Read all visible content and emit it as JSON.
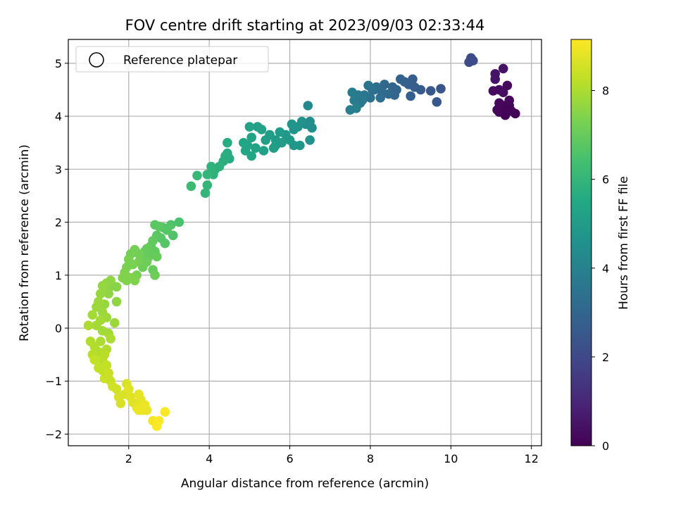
{
  "chart_data": {
    "type": "scatter",
    "title": "FOV centre drift starting at 2023/09/03 02:33:44",
    "xlabel": "Angular distance from reference (arcmin)",
    "ylabel": "Rotation from reference (arcmin)",
    "xlim": [
      0.5,
      12.25
    ],
    "ylim": [
      -2.22,
      5.45
    ],
    "xticks": [
      2,
      4,
      6,
      8,
      10,
      12
    ],
    "yticks": [
      -2,
      -1,
      0,
      1,
      2,
      3,
      4,
      5
    ],
    "grid": true,
    "legend": {
      "placement": "top-left",
      "entries": [
        "Reference platepar"
      ]
    },
    "colorbar": {
      "label": "Hours from first FF file",
      "range": [
        0,
        9.15
      ],
      "ticks": [
        0,
        2,
        4,
        6,
        8
      ],
      "colormap": "viridis"
    },
    "points": [
      {
        "x": 10.5,
        "y": 5.1,
        "t": 2.1
      },
      {
        "x": 10.55,
        "y": 5.05,
        "t": 2.1
      },
      {
        "x": 10.45,
        "y": 5.02,
        "t": 2.1
      },
      {
        "x": 11.1,
        "y": 4.8,
        "t": 0.5
      },
      {
        "x": 11.3,
        "y": 4.9,
        "t": 0.5
      },
      {
        "x": 11.1,
        "y": 4.7,
        "t": 0.5
      },
      {
        "x": 11.2,
        "y": 4.5,
        "t": 0.3
      },
      {
        "x": 11.3,
        "y": 4.45,
        "t": 0.3
      },
      {
        "x": 11.4,
        "y": 4.58,
        "t": 0.2
      },
      {
        "x": 11.05,
        "y": 4.48,
        "t": 0.3
      },
      {
        "x": 11.45,
        "y": 4.3,
        "t": 0.2
      },
      {
        "x": 11.2,
        "y": 4.25,
        "t": 0.2
      },
      {
        "x": 11.3,
        "y": 4.2,
        "t": 0.1
      },
      {
        "x": 11.4,
        "y": 4.15,
        "t": 0.1
      },
      {
        "x": 11.5,
        "y": 4.1,
        "t": 0.1
      },
      {
        "x": 11.2,
        "y": 4.08,
        "t": 0.1
      },
      {
        "x": 11.35,
        "y": 4.02,
        "t": 0.05
      },
      {
        "x": 11.6,
        "y": 4.05,
        "t": 0.05
      },
      {
        "x": 11.45,
        "y": 4.2,
        "t": 0.1
      },
      {
        "x": 11.15,
        "y": 4.12,
        "t": 0.15
      },
      {
        "x": 9.75,
        "y": 4.52,
        "t": 2.4
      },
      {
        "x": 9.65,
        "y": 4.27,
        "t": 2.5
      },
      {
        "x": 9.5,
        "y": 4.48,
        "t": 2.5
      },
      {
        "x": 9.25,
        "y": 4.5,
        "t": 2.6
      },
      {
        "x": 9.05,
        "y": 4.7,
        "t": 2.7
      },
      {
        "x": 8.95,
        "y": 4.6,
        "t": 2.75
      },
      {
        "x": 9.1,
        "y": 4.55,
        "t": 2.7
      },
      {
        "x": 8.85,
        "y": 4.65,
        "t": 2.8
      },
      {
        "x": 8.75,
        "y": 4.7,
        "t": 2.9
      },
      {
        "x": 9.0,
        "y": 4.38,
        "t": 2.75
      },
      {
        "x": 8.65,
        "y": 4.5,
        "t": 3.0
      },
      {
        "x": 8.55,
        "y": 4.55,
        "t": 3.0
      },
      {
        "x": 8.45,
        "y": 4.42,
        "t": 3.1
      },
      {
        "x": 8.35,
        "y": 4.6,
        "t": 3.1
      },
      {
        "x": 8.3,
        "y": 4.45,
        "t": 3.2
      },
      {
        "x": 8.25,
        "y": 4.35,
        "t": 3.3
      },
      {
        "x": 8.15,
        "y": 4.55,
        "t": 3.3
      },
      {
        "x": 8.05,
        "y": 4.5,
        "t": 3.4
      },
      {
        "x": 8.0,
        "y": 4.35,
        "t": 3.4
      },
      {
        "x": 7.95,
        "y": 4.58,
        "t": 3.5
      },
      {
        "x": 7.85,
        "y": 4.4,
        "t": 3.6
      },
      {
        "x": 7.75,
        "y": 4.25,
        "t": 3.6
      },
      {
        "x": 7.7,
        "y": 4.4,
        "t": 3.7
      },
      {
        "x": 7.6,
        "y": 4.3,
        "t": 3.8
      },
      {
        "x": 7.55,
        "y": 4.45,
        "t": 3.8
      },
      {
        "x": 7.5,
        "y": 4.12,
        "t": 3.9
      },
      {
        "x": 7.65,
        "y": 4.15,
        "t": 3.9
      },
      {
        "x": 7.8,
        "y": 4.3,
        "t": 3.7
      },
      {
        "x": 8.1,
        "y": 4.5,
        "t": 3.3
      },
      {
        "x": 8.6,
        "y": 4.4,
        "t": 3.0
      },
      {
        "x": 6.45,
        "y": 4.2,
        "t": 4.3
      },
      {
        "x": 6.55,
        "y": 3.78,
        "t": 4.5
      },
      {
        "x": 6.5,
        "y": 3.9,
        "t": 4.4
      },
      {
        "x": 6.4,
        "y": 3.85,
        "t": 4.5
      },
      {
        "x": 6.3,
        "y": 3.9,
        "t": 4.6
      },
      {
        "x": 6.2,
        "y": 3.8,
        "t": 4.6
      },
      {
        "x": 6.1,
        "y": 3.75,
        "t": 4.7
      },
      {
        "x": 6.05,
        "y": 3.85,
        "t": 4.7
      },
      {
        "x": 6.5,
        "y": 3.55,
        "t": 4.6
      },
      {
        "x": 6.25,
        "y": 3.45,
        "t": 4.8
      },
      {
        "x": 6.1,
        "y": 3.45,
        "t": 4.8
      },
      {
        "x": 6.0,
        "y": 3.55,
        "t": 4.9
      },
      {
        "x": 5.9,
        "y": 3.65,
        "t": 4.9
      },
      {
        "x": 5.75,
        "y": 3.7,
        "t": 5.0
      },
      {
        "x": 5.65,
        "y": 3.55,
        "t": 5.0
      },
      {
        "x": 5.6,
        "y": 3.4,
        "t": 5.1
      },
      {
        "x": 5.5,
        "y": 3.65,
        "t": 5.1
      },
      {
        "x": 5.4,
        "y": 3.55,
        "t": 5.1
      },
      {
        "x": 5.3,
        "y": 3.75,
        "t": 5.2
      },
      {
        "x": 5.2,
        "y": 3.8,
        "t": 5.2
      },
      {
        "x": 5.15,
        "y": 3.4,
        "t": 5.3
      },
      {
        "x": 5.05,
        "y": 3.6,
        "t": 5.3
      },
      {
        "x": 5.0,
        "y": 3.8,
        "t": 5.3
      },
      {
        "x": 4.95,
        "y": 3.45,
        "t": 5.4
      },
      {
        "x": 4.9,
        "y": 3.35,
        "t": 5.4
      },
      {
        "x": 4.85,
        "y": 3.5,
        "t": 5.4
      },
      {
        "x": 5.05,
        "y": 3.25,
        "t": 5.4
      },
      {
        "x": 5.35,
        "y": 3.35,
        "t": 5.2
      },
      {
        "x": 5.65,
        "y": 3.45,
        "t": 5.0
      },
      {
        "x": 5.8,
        "y": 3.5,
        "t": 5.0
      },
      {
        "x": 4.45,
        "y": 3.5,
        "t": 5.6
      },
      {
        "x": 4.5,
        "y": 3.2,
        "t": 5.6
      },
      {
        "x": 4.4,
        "y": 3.25,
        "t": 5.7
      },
      {
        "x": 4.35,
        "y": 3.15,
        "t": 5.7
      },
      {
        "x": 4.25,
        "y": 3.05,
        "t": 5.8
      },
      {
        "x": 4.15,
        "y": 3.0,
        "t": 5.8
      },
      {
        "x": 4.05,
        "y": 3.05,
        "t": 5.9
      },
      {
        "x": 4.1,
        "y": 2.9,
        "t": 5.9
      },
      {
        "x": 3.95,
        "y": 2.9,
        "t": 6.0
      },
      {
        "x": 3.95,
        "y": 2.7,
        "t": 6.0
      },
      {
        "x": 3.9,
        "y": 2.55,
        "t": 6.0
      },
      {
        "x": 3.7,
        "y": 2.88,
        "t": 6.1
      },
      {
        "x": 3.55,
        "y": 2.68,
        "t": 6.2
      },
      {
        "x": 4.45,
        "y": 3.3,
        "t": 5.6
      },
      {
        "x": 3.25,
        "y": 2.0,
        "t": 6.5
      },
      {
        "x": 3.1,
        "y": 1.75,
        "t": 6.6
      },
      {
        "x": 3.05,
        "y": 1.95,
        "t": 6.6
      },
      {
        "x": 2.95,
        "y": 1.85,
        "t": 6.7
      },
      {
        "x": 2.85,
        "y": 1.9,
        "t": 6.7
      },
      {
        "x": 2.8,
        "y": 1.7,
        "t": 6.7
      },
      {
        "x": 2.75,
        "y": 1.92,
        "t": 6.8
      },
      {
        "x": 2.65,
        "y": 1.95,
        "t": 6.8
      },
      {
        "x": 2.7,
        "y": 1.75,
        "t": 6.8
      },
      {
        "x": 2.9,
        "y": 1.6,
        "t": 6.7
      },
      {
        "x": 2.6,
        "y": 1.65,
        "t": 6.9
      },
      {
        "x": 2.55,
        "y": 1.55,
        "t": 6.9
      },
      {
        "x": 2.65,
        "y": 1.45,
        "t": 6.9
      },
      {
        "x": 2.7,
        "y": 1.35,
        "t": 7.0
      },
      {
        "x": 2.5,
        "y": 1.35,
        "t": 7.0
      },
      {
        "x": 2.4,
        "y": 1.45,
        "t": 7.0
      },
      {
        "x": 2.45,
        "y": 1.25,
        "t": 7.1
      },
      {
        "x": 2.35,
        "y": 1.15,
        "t": 7.1
      },
      {
        "x": 2.6,
        "y": 1.1,
        "t": 7.0
      },
      {
        "x": 2.65,
        "y": 1.0,
        "t": 7.1
      },
      {
        "x": 2.3,
        "y": 1.3,
        "t": 7.1
      },
      {
        "x": 2.25,
        "y": 1.4,
        "t": 7.2
      },
      {
        "x": 2.15,
        "y": 1.48,
        "t": 7.2
      },
      {
        "x": 2.05,
        "y": 1.4,
        "t": 7.2
      },
      {
        "x": 2.0,
        "y": 1.3,
        "t": 7.3
      },
      {
        "x": 2.1,
        "y": 1.2,
        "t": 7.3
      },
      {
        "x": 2.2,
        "y": 1.0,
        "t": 7.3
      },
      {
        "x": 2.15,
        "y": 0.9,
        "t": 7.4
      },
      {
        "x": 2.05,
        "y": 0.95,
        "t": 7.4
      },
      {
        "x": 1.95,
        "y": 1.15,
        "t": 7.3
      },
      {
        "x": 1.9,
        "y": 1.05,
        "t": 7.4
      },
      {
        "x": 1.85,
        "y": 0.95,
        "t": 7.4
      },
      {
        "x": 1.95,
        "y": 0.9,
        "t": 7.4
      },
      {
        "x": 2.25,
        "y": 1.25,
        "t": 7.2
      },
      {
        "x": 2.45,
        "y": 1.5,
        "t": 7.0
      },
      {
        "x": 1.7,
        "y": 0.78,
        "t": 7.5
      },
      {
        "x": 1.6,
        "y": 0.8,
        "t": 7.5
      },
      {
        "x": 1.55,
        "y": 0.9,
        "t": 7.6
      },
      {
        "x": 1.45,
        "y": 0.85,
        "t": 7.6
      },
      {
        "x": 1.4,
        "y": 0.75,
        "t": 7.6
      },
      {
        "x": 1.5,
        "y": 0.65,
        "t": 7.6
      },
      {
        "x": 1.35,
        "y": 0.8,
        "t": 7.7
      },
      {
        "x": 1.3,
        "y": 0.65,
        "t": 7.7
      },
      {
        "x": 1.7,
        "y": 0.5,
        "t": 7.6
      },
      {
        "x": 1.4,
        "y": 0.45,
        "t": 7.7
      },
      {
        "x": 1.25,
        "y": 0.5,
        "t": 7.8
      },
      {
        "x": 1.2,
        "y": 0.4,
        "t": 7.8
      },
      {
        "x": 1.35,
        "y": 0.3,
        "t": 7.8
      },
      {
        "x": 1.45,
        "y": 0.2,
        "t": 7.8
      },
      {
        "x": 1.3,
        "y": 0.15,
        "t": 7.9
      },
      {
        "x": 1.1,
        "y": 0.25,
        "t": 7.9
      },
      {
        "x": 1.2,
        "y": 0.05,
        "t": 7.9
      },
      {
        "x": 1.0,
        "y": 0.05,
        "t": 8.0
      },
      {
        "x": 1.35,
        "y": -0.05,
        "t": 7.9
      },
      {
        "x": 1.5,
        "y": -0.1,
        "t": 7.9
      },
      {
        "x": 1.65,
        "y": 0.1,
        "t": 7.8
      },
      {
        "x": 1.55,
        "y": -0.2,
        "t": 8.0
      },
      {
        "x": 1.3,
        "y": -0.25,
        "t": 8.0
      },
      {
        "x": 1.05,
        "y": -0.25,
        "t": 8.1
      },
      {
        "x": 1.15,
        "y": -0.35,
        "t": 8.1
      },
      {
        "x": 1.25,
        "y": -0.45,
        "t": 8.1
      },
      {
        "x": 1.1,
        "y": -0.5,
        "t": 8.2
      },
      {
        "x": 1.4,
        "y": -0.5,
        "t": 8.2
      },
      {
        "x": 1.35,
        "y": -0.6,
        "t": 8.2
      },
      {
        "x": 1.15,
        "y": -0.6,
        "t": 8.3
      },
      {
        "x": 1.25,
        "y": -0.75,
        "t": 8.3
      },
      {
        "x": 1.35,
        "y": -0.8,
        "t": 8.3
      },
      {
        "x": 1.45,
        "y": -0.7,
        "t": 8.3
      },
      {
        "x": 1.5,
        "y": -0.85,
        "t": 8.4
      },
      {
        "x": 1.4,
        "y": -0.95,
        "t": 8.4
      },
      {
        "x": 1.55,
        "y": -1.0,
        "t": 8.4
      },
      {
        "x": 1.6,
        "y": -1.1,
        "t": 8.5
      },
      {
        "x": 1.7,
        "y": -1.15,
        "t": 8.5
      },
      {
        "x": 1.5,
        "y": -0.95,
        "t": 8.4
      },
      {
        "x": 1.75,
        "y": -1.3,
        "t": 8.6
      },
      {
        "x": 1.8,
        "y": -1.42,
        "t": 8.6
      },
      {
        "x": 1.9,
        "y": -1.25,
        "t": 8.6
      },
      {
        "x": 1.95,
        "y": -1.05,
        "t": 8.6
      },
      {
        "x": 2.0,
        "y": -1.15,
        "t": 8.7
      },
      {
        "x": 2.05,
        "y": -1.3,
        "t": 8.7
      },
      {
        "x": 2.1,
        "y": -1.4,
        "t": 8.7
      },
      {
        "x": 2.2,
        "y": -1.5,
        "t": 8.8
      },
      {
        "x": 2.3,
        "y": -1.35,
        "t": 8.8
      },
      {
        "x": 2.25,
        "y": -1.25,
        "t": 8.8
      },
      {
        "x": 2.35,
        "y": -1.55,
        "t": 8.9
      },
      {
        "x": 2.4,
        "y": -1.45,
        "t": 8.9
      },
      {
        "x": 2.45,
        "y": -1.55,
        "t": 8.9
      },
      {
        "x": 2.6,
        "y": -1.75,
        "t": 9.0
      },
      {
        "x": 2.7,
        "y": -1.85,
        "t": 9.1
      },
      {
        "x": 2.75,
        "y": -1.75,
        "t": 9.1
      },
      {
        "x": 2.9,
        "y": -1.58,
        "t": 9.1
      },
      {
        "x": 2.25,
        "y": -1.55,
        "t": 8.9
      },
      {
        "x": 1.45,
        "y": -0.4,
        "t": 8.1
      }
    ]
  }
}
